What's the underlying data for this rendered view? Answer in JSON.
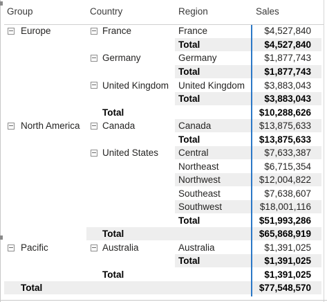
{
  "headers": {
    "group": "Group",
    "country": "Country",
    "region": "Region",
    "sales": "Sales"
  },
  "rows": [
    {
      "group": "Europe",
      "country": "France",
      "region": "France",
      "sales": "$4,527,840"
    },
    {
      "region": "Total",
      "sales": "$4,527,840"
    },
    {
      "country": "Germany",
      "region": "Germany",
      "sales": "$1,877,743"
    },
    {
      "region": "Total",
      "sales": "$1,877,743"
    },
    {
      "country": "United Kingdom",
      "region": "United Kingdom",
      "sales": "$3,883,043"
    },
    {
      "region": "Total",
      "sales": "$3,883,043"
    },
    {
      "country": "Total",
      "sales": "$10,288,626"
    },
    {
      "group": "North America",
      "country": "Canada",
      "region": "Canada",
      "sales": "$13,875,633"
    },
    {
      "region": "Total",
      "sales": "$13,875,633"
    },
    {
      "country": "United States",
      "region": "Central",
      "sales": "$7,633,387"
    },
    {
      "region": "Northeast",
      "sales": "$6,715,354"
    },
    {
      "region": "Northwest",
      "sales": "$12,004,822"
    },
    {
      "region": "Southeast",
      "sales": "$7,638,607"
    },
    {
      "region": "Southwest",
      "sales": "$18,001,116"
    },
    {
      "region": "Total",
      "sales": "$51,993,286"
    },
    {
      "country": "Total",
      "sales": "$65,868,919"
    },
    {
      "group": "Pacific",
      "country": "Australia",
      "region": "Australia",
      "sales": "$1,391,025"
    },
    {
      "region": "Total",
      "sales": "$1,391,025"
    },
    {
      "country": "Total",
      "sales": "$1,391,025"
    },
    {
      "group": "Total",
      "sales": "$77,548,570"
    }
  ]
}
